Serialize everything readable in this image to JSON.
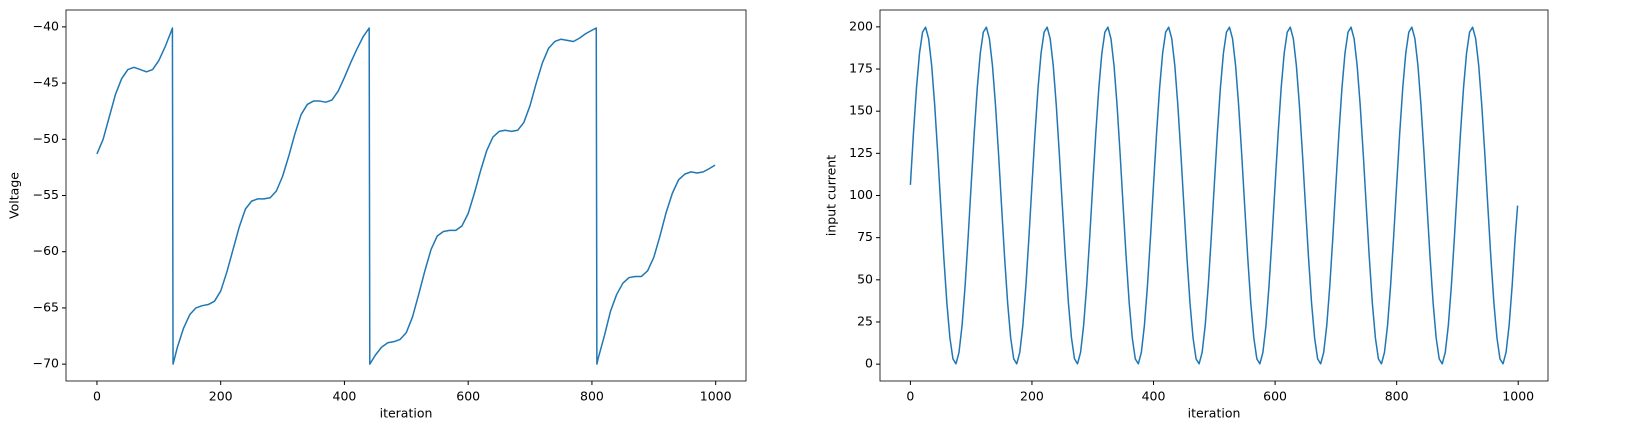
{
  "chart_data": [
    {
      "type": "line",
      "xlabel": "iteration",
      "ylabel": "Voltage",
      "color": "#1f77b4",
      "xlim": [
        -50,
        1049
      ],
      "ylim": [
        -71.5,
        -38.5
      ],
      "xticks": [
        0,
        200,
        400,
        600,
        800,
        1000
      ],
      "yticks": [
        {
          "value": -70,
          "label": "−70"
        },
        {
          "value": -65,
          "label": "−65"
        },
        {
          "value": -60,
          "label": "−60"
        },
        {
          "value": -55,
          "label": "−55"
        },
        {
          "value": -50,
          "label": "−50"
        },
        {
          "value": -45,
          "label": "−45"
        },
        {
          "value": -40,
          "label": "−40"
        }
      ],
      "x": [
        0,
        10,
        20,
        30,
        40,
        50,
        60,
        70,
        80,
        90,
        100,
        110,
        120,
        122,
        123,
        130,
        140,
        150,
        160,
        170,
        180,
        190,
        200,
        210,
        220,
        230,
        240,
        250,
        260,
        270,
        280,
        290,
        300,
        310,
        320,
        330,
        340,
        350,
        360,
        370,
        380,
        390,
        400,
        410,
        420,
        430,
        440,
        441,
        450,
        460,
        470,
        480,
        490,
        500,
        510,
        520,
        530,
        540,
        550,
        560,
        570,
        580,
        590,
        600,
        610,
        620,
        630,
        640,
        650,
        660,
        670,
        680,
        690,
        700,
        710,
        720,
        730,
        740,
        750,
        760,
        770,
        780,
        790,
        800,
        807,
        808,
        810,
        820,
        830,
        840,
        850,
        860,
        870,
        880,
        890,
        900,
        910,
        920,
        930,
        940,
        950,
        960,
        970,
        980,
        990,
        999
      ],
      "values": [
        -51.3,
        -50.0,
        -48.0,
        -46.0,
        -44.6,
        -43.8,
        -43.6,
        -43.8,
        -44.0,
        -43.8,
        -43.0,
        -41.8,
        -40.4,
        -40.1,
        -70.0,
        -68.5,
        -66.8,
        -65.6,
        -65.0,
        -64.8,
        -64.7,
        -64.4,
        -63.5,
        -61.8,
        -59.8,
        -57.8,
        -56.2,
        -55.5,
        -55.3,
        -55.3,
        -55.2,
        -54.6,
        -53.3,
        -51.5,
        -49.5,
        -47.8,
        -46.9,
        -46.6,
        -46.6,
        -46.7,
        -46.5,
        -45.7,
        -44.5,
        -43.2,
        -42.0,
        -40.9,
        -40.1,
        -70.0,
        -69.2,
        -68.5,
        -68.1,
        -68.0,
        -67.8,
        -67.2,
        -65.8,
        -63.8,
        -61.7,
        -59.8,
        -58.6,
        -58.2,
        -58.1,
        -58.1,
        -57.7,
        -56.6,
        -54.8,
        -52.8,
        -51.0,
        -49.8,
        -49.3,
        -49.2,
        -49.3,
        -49.2,
        -48.5,
        -47.0,
        -45.0,
        -43.2,
        -41.9,
        -41.3,
        -41.1,
        -41.2,
        -41.3,
        -41.0,
        -40.6,
        -40.3,
        -40.1,
        -70.0,
        -69.5,
        -67.5,
        -65.3,
        -63.8,
        -62.8,
        -62.3,
        -62.2,
        -62.2,
        -61.7,
        -60.5,
        -58.6,
        -56.5,
        -54.8,
        -53.6,
        -53.1,
        -52.9,
        -53.0,
        -52.9,
        -52.6,
        -52.3
      ]
    },
    {
      "type": "line",
      "xlabel": "iteration",
      "ylabel": "input current",
      "color": "#1f77b4",
      "xlim": [
        -50,
        1049
      ],
      "ylim": [
        -10,
        210
      ],
      "xticks": [
        0,
        200,
        400,
        600,
        800,
        1000
      ],
      "yticks": [
        0,
        25,
        50,
        75,
        100,
        125,
        150,
        175,
        200
      ],
      "x": [
        0,
        5,
        10,
        15,
        20,
        25,
        30,
        35,
        40,
        45,
        50,
        55,
        60,
        65,
        70,
        75,
        80,
        85,
        90,
        95,
        100,
        105,
        110,
        115,
        120,
        125,
        130,
        135,
        140,
        145,
        150,
        155,
        160,
        165,
        170,
        175,
        180,
        185,
        190,
        195,
        200,
        205,
        210,
        215,
        220,
        225,
        230,
        235,
        240,
        245,
        250,
        255,
        260,
        265,
        270,
        275,
        280,
        285,
        290,
        295,
        300,
        305,
        310,
        315,
        320,
        325,
        330,
        335,
        340,
        345,
        350,
        355,
        360,
        365,
        370,
        375,
        380,
        385,
        390,
        395,
        400,
        405,
        410,
        415,
        420,
        425,
        430,
        435,
        440,
        445,
        450,
        455,
        460,
        465,
        470,
        475,
        480,
        485,
        490,
        495,
        500,
        505,
        510,
        515,
        520,
        525,
        530,
        535,
        540,
        545,
        550,
        555,
        560,
        565,
        570,
        575,
        580,
        585,
        590,
        595,
        600,
        605,
        610,
        615,
        620,
        625,
        630,
        635,
        640,
        645,
        650,
        655,
        660,
        665,
        670,
        675,
        680,
        685,
        690,
        695,
        700,
        705,
        710,
        715,
        720,
        725,
        730,
        735,
        740,
        745,
        750,
        755,
        760,
        765,
        770,
        775,
        780,
        785,
        790,
        795,
        800,
        805,
        810,
        815,
        820,
        825,
        830,
        835,
        840,
        845,
        850,
        855,
        860,
        865,
        870,
        875,
        880,
        885,
        890,
        895,
        900,
        905,
        910,
        915,
        920,
        925,
        930,
        935,
        940,
        945,
        950,
        955,
        960,
        965,
        970,
        975,
        980,
        985,
        990,
        995,
        999
      ],
      "values": [
        106.3,
        136.8,
        163.7,
        184.4,
        196.9,
        199.8,
        193.0,
        177.1,
        153.6,
        124.9,
        93.7,
        63.2,
        36.3,
        15.6,
        3.1,
        0.2,
        7.0,
        22.9,
        46.4,
        75.1,
        106.3,
        136.8,
        163.7,
        184.4,
        196.9,
        199.8,
        193.0,
        177.1,
        153.6,
        124.9,
        93.7,
        63.2,
        36.3,
        15.6,
        3.1,
        0.2,
        7.0,
        22.9,
        46.4,
        75.1,
        106.3,
        136.8,
        163.7,
        184.4,
        196.9,
        199.8,
        193.0,
        177.1,
        153.6,
        124.9,
        93.7,
        63.2,
        36.3,
        15.6,
        3.1,
        0.2,
        7.0,
        22.9,
        46.4,
        75.1,
        106.3,
        136.8,
        163.7,
        184.4,
        196.9,
        199.8,
        193.0,
        177.1,
        153.6,
        124.9,
        93.7,
        63.2,
        36.3,
        15.6,
        3.1,
        0.2,
        7.0,
        22.9,
        46.4,
        75.1,
        106.3,
        136.8,
        163.7,
        184.4,
        196.9,
        199.8,
        193.0,
        177.1,
        153.6,
        124.9,
        93.7,
        63.2,
        36.3,
        15.6,
        3.1,
        0.2,
        7.0,
        22.9,
        46.4,
        75.1,
        106.3,
        136.8,
        163.7,
        184.4,
        196.9,
        199.8,
        193.0,
        177.1,
        153.6,
        124.9,
        93.7,
        63.2,
        36.3,
        15.6,
        3.1,
        0.2,
        7.0,
        22.9,
        46.4,
        75.1,
        106.3,
        136.8,
        163.7,
        184.4,
        196.9,
        199.8,
        193.0,
        177.1,
        153.6,
        124.9,
        93.7,
        63.2,
        36.3,
        15.6,
        3.1,
        0.2,
        7.0,
        22.9,
        46.4,
        75.1,
        106.3,
        136.8,
        163.7,
        184.4,
        196.9,
        199.8,
        193.0,
        177.1,
        153.6,
        124.9,
        93.7,
        63.2,
        36.3,
        15.6,
        3.1,
        0.2,
        7.0,
        22.9,
        46.4,
        75.1,
        106.3,
        136.8,
        163.7,
        184.4,
        196.9,
        199.8,
        193.0,
        177.1,
        153.6,
        124.9,
        93.7,
        63.2,
        36.3,
        15.6,
        3.1,
        0.2,
        7.0,
        22.9,
        46.4,
        75.1,
        106.3,
        136.8,
        163.7,
        184.4,
        196.9,
        199.8,
        193.0,
        177.1,
        153.6,
        124.9,
        93.7,
        63.2,
        36.3,
        15.6,
        3.1,
        0.2,
        7.0,
        22.9,
        46.4,
        75.1,
        94.0
      ]
    }
  ]
}
